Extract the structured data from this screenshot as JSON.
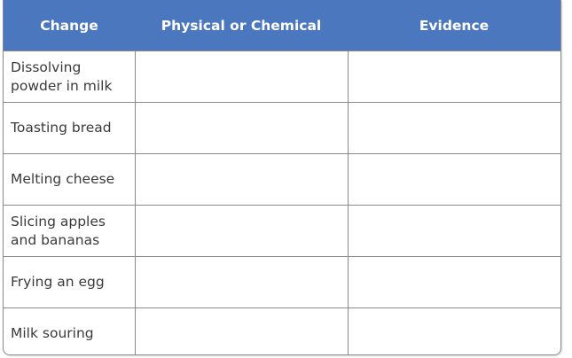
{
  "table": {
    "header_color": "#4a77bd",
    "headers": [
      "Change",
      "Physical or Chemical",
      "Evidence"
    ],
    "rows": [
      {
        "change": "Dissolving powder in milk",
        "type": "",
        "evidence": ""
      },
      {
        "change": "Toasting bread",
        "type": "",
        "evidence": ""
      },
      {
        "change": "Melting cheese",
        "type": "",
        "evidence": ""
      },
      {
        "change": "Slicing apples and bananas",
        "type": "",
        "evidence": ""
      },
      {
        "change": "Frying an egg",
        "type": "",
        "evidence": ""
      },
      {
        "change": "Milk souring",
        "type": "",
        "evidence": ""
      }
    ]
  }
}
